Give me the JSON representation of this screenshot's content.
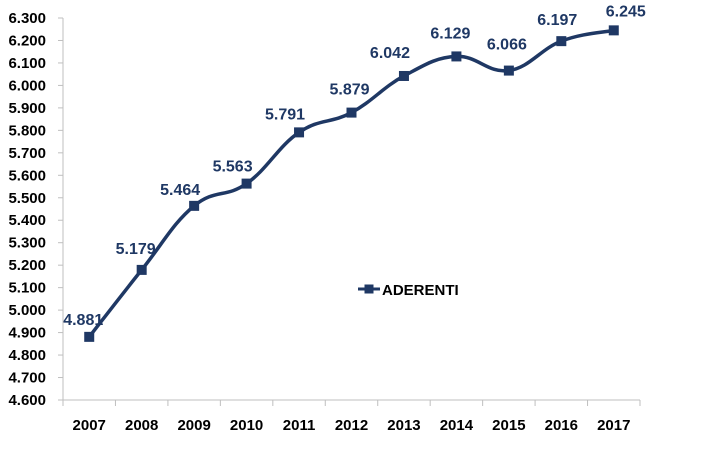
{
  "chart_data": {
    "type": "line",
    "categories": [
      "2007",
      "2008",
      "2009",
      "2010",
      "2011",
      "2012",
      "2013",
      "2014",
      "2015",
      "2016",
      "2017"
    ],
    "series": [
      {
        "name": "ADERENTI",
        "values": [
          4881,
          5179,
          5464,
          5563,
          5791,
          5879,
          6042,
          6129,
          6066,
          6197,
          6245
        ],
        "labels": [
          "4.881",
          "5.179",
          "5.464",
          "5.563",
          "5.791",
          "5.879",
          "6.042",
          "6.129",
          "6.066",
          "6.197",
          "6.245"
        ]
      }
    ],
    "y_ticks": [
      "4.600",
      "4.700",
      "4.800",
      "4.900",
      "5.000",
      "5.100",
      "5.200",
      "5.300",
      "5.400",
      "5.500",
      "5.600",
      "5.700",
      "5.800",
      "5.900",
      "6.000",
      "6.100",
      "6.200",
      "6.300"
    ],
    "ylim": [
      4600,
      6300
    ],
    "ystep": 100,
    "title": "",
    "xlabel": "",
    "ylabel": "",
    "legend_position": "center-right",
    "grid": false,
    "colors": {
      "series": "#1f3864",
      "axis": "#bfbfbf",
      "ticks": "#000000"
    }
  }
}
